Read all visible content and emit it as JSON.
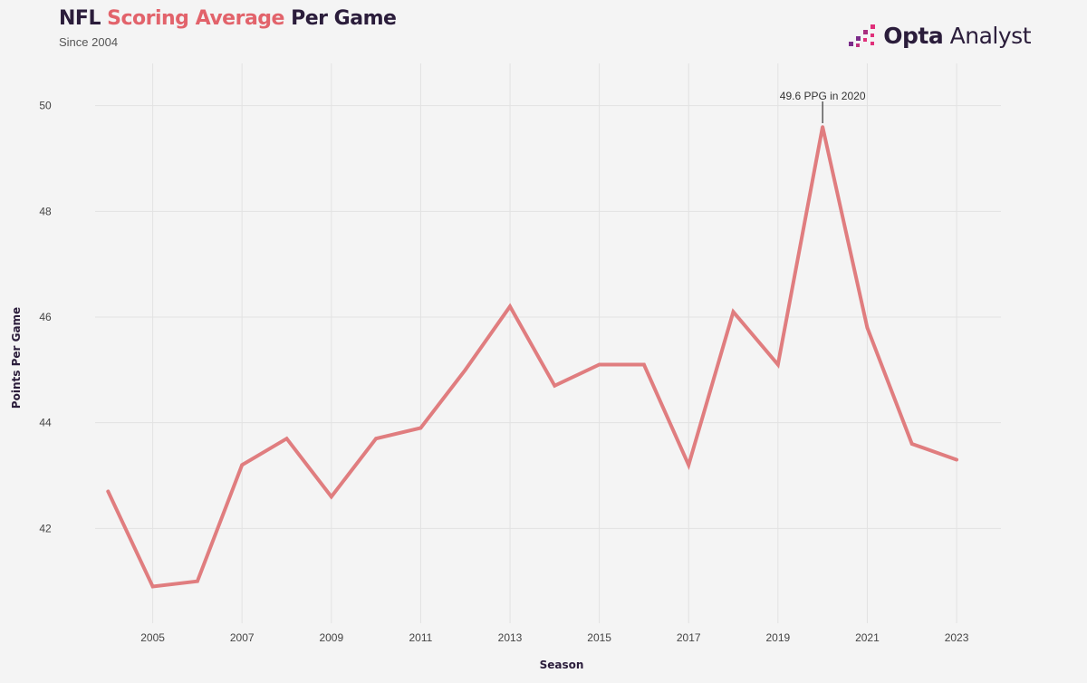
{
  "header": {
    "title_part1": "NFL ",
    "title_accent": "Scoring Average",
    "title_part2": " Per Game",
    "subtitle": "Since 2004"
  },
  "logo": {
    "name": "Opta",
    "suffix": " Analyst",
    "icon": "opta-dots-logo-icon"
  },
  "colors": {
    "line": "#e07d7f",
    "accent": "#e2636b",
    "grid": "#e2e2e2",
    "logo_purple": "#7b2c8a",
    "logo_pink": "#e0307a"
  },
  "chart_data": {
    "type": "line",
    "title": "NFL Scoring Average Per Game",
    "subtitle": "Since 2004",
    "xlabel": "Season",
    "ylabel": "Points Per Game",
    "x": [
      2004,
      2005,
      2006,
      2007,
      2008,
      2009,
      2010,
      2011,
      2012,
      2013,
      2014,
      2015,
      2016,
      2017,
      2018,
      2019,
      2020,
      2021,
      2022,
      2023
    ],
    "series": [
      {
        "values": [
          42.7,
          40.9,
          41.0,
          43.2,
          43.7,
          42.6,
          43.7,
          43.9,
          45.0,
          46.2,
          44.7,
          45.1,
          45.1,
          43.2,
          46.1,
          45.1,
          49.6,
          45.8,
          43.6,
          43.3
        ]
      }
    ],
    "xticks": [
      "2005",
      "2007",
      "2009",
      "2011",
      "2013",
      "2015",
      "2017",
      "2019",
      "2021",
      "2023"
    ],
    "yticks": [
      "42",
      "44",
      "46",
      "48",
      "50"
    ],
    "ylim": [
      40.0,
      50.8
    ],
    "xlim": [
      2003.0,
      2024.5
    ],
    "grid": true,
    "annotation": {
      "text": "49.6 PPG in 2020",
      "x": 2020,
      "y": 49.6
    }
  }
}
